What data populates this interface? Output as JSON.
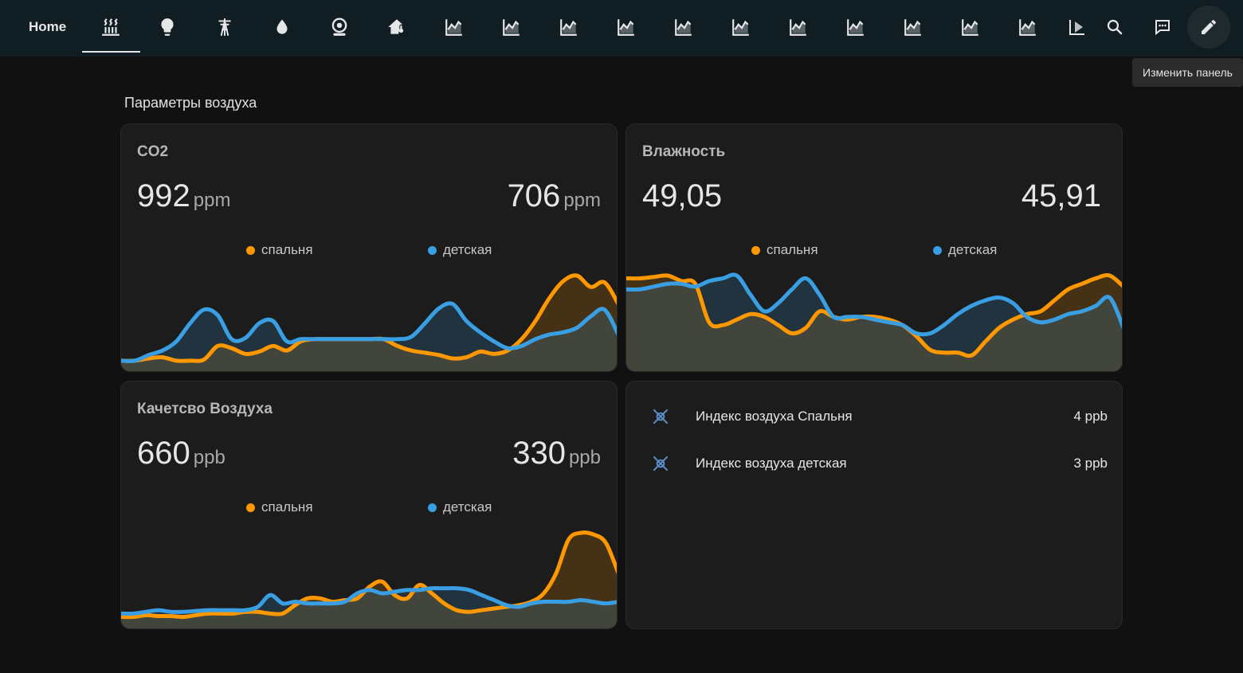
{
  "nav": {
    "home_label": "Home",
    "tabs": [
      {
        "icon": "radiator-icon",
        "active": true
      },
      {
        "icon": "lightbulb-icon"
      },
      {
        "icon": "transmission-tower-icon"
      },
      {
        "icon": "water-drop-icon"
      },
      {
        "icon": "robot-vacuum-icon"
      },
      {
        "icon": "home-thermometer-icon"
      },
      {
        "icon": "chart-areaspline-icon"
      },
      {
        "icon": "chart-areaspline-icon"
      },
      {
        "icon": "chart-areaspline-icon"
      },
      {
        "icon": "chart-areaspline-icon"
      },
      {
        "icon": "chart-areaspline-icon"
      },
      {
        "icon": "chart-areaspline-icon"
      },
      {
        "icon": "chart-areaspline-icon"
      },
      {
        "icon": "chart-areaspline-icon"
      },
      {
        "icon": "chart-areaspline-icon"
      },
      {
        "icon": "chart-areaspline-icon"
      },
      {
        "icon": "chart-areaspline-icon"
      },
      {
        "icon": "chevron-right-icon"
      }
    ],
    "actions": [
      "search-icon",
      "assist-icon",
      "pencil-icon"
    ],
    "tooltip": "Изменить панель"
  },
  "section_title": "Параметры воздуха",
  "colors": {
    "series_a": "#ff9800",
    "series_b": "#3a9ee3",
    "card_bg": "#1c1c1c",
    "topbar_bg": "#101e24"
  },
  "cards": {
    "co2": {
      "name": "CO2",
      "left_value": "992",
      "left_unit": "ppm",
      "right_value": "706",
      "right_unit": "ppm",
      "legend_a": "спальня",
      "legend_b": "детская"
    },
    "humidity": {
      "name": "Влажность",
      "left_value": "49,05",
      "left_unit": "",
      "right_value": "45,91",
      "right_unit": "",
      "legend_a": "спальня",
      "legend_b": "детская"
    },
    "air_quality": {
      "name": "Качетсво Воздуха",
      "left_value": "660",
      "left_unit": "ppb",
      "right_value": "330",
      "right_unit": "ppb",
      "legend_a": "спальня",
      "legend_b": "детская"
    },
    "entities": [
      {
        "name": "Индекс воздуха Спальня",
        "value": "4 ppb",
        "icon": "air-filter-icon"
      },
      {
        "name": "Индекс воздуха детская",
        "value": "3 ppb",
        "icon": "air-filter-icon"
      }
    ]
  },
  "chart_data": [
    {
      "type": "area",
      "title": "CO2",
      "series": [
        {
          "name": "спальня",
          "values": [
            5,
            5,
            7,
            8,
            5,
            5,
            6,
            18,
            16,
            11,
            13,
            18,
            14,
            22,
            24,
            24,
            24,
            24,
            24,
            24,
            18,
            14,
            12,
            10,
            7,
            8,
            13,
            11,
            14,
            24,
            40,
            60,
            75,
            80,
            70,
            74,
            55
          ]
        },
        {
          "name": "детская",
          "values": [
            5,
            5,
            10,
            14,
            22,
            38,
            50,
            45,
            24,
            25,
            38,
            40,
            22,
            24,
            24,
            24,
            24,
            24,
            24,
            24,
            24,
            26,
            38,
            51,
            55,
            40,
            30,
            22,
            16,
            18,
            24,
            28,
            30,
            34,
            44,
            50,
            28
          ]
        }
      ]
    },
    {
      "type": "area",
      "title": "Влажность",
      "series": [
        {
          "name": "спальня",
          "values": [
            64,
            64,
            65,
            66,
            62,
            60,
            32,
            30,
            34,
            38,
            36,
            30,
            24,
            28,
            40,
            36,
            34,
            36,
            36,
            34,
            30,
            22,
            12,
            10,
            10,
            8,
            18,
            28,
            34,
            38,
            40,
            48,
            56,
            60,
            64,
            66,
            58
          ]
        },
        {
          "name": "детская",
          "values": [
            56,
            56,
            58,
            60,
            60,
            58,
            62,
            64,
            66,
            52,
            40,
            46,
            56,
            64,
            52,
            36,
            36,
            36,
            34,
            32,
            30,
            24,
            24,
            30,
            38,
            44,
            48,
            50,
            46,
            36,
            32,
            34,
            38,
            40,
            44,
            50,
            28
          ]
        }
      ]
    },
    {
      "type": "area",
      "title": "Качетсво Воздуха",
      "series": [
        {
          "name": "спальня",
          "values": [
            8,
            8,
            10,
            9,
            9,
            8,
            10,
            12,
            12,
            12,
            14,
            14,
            12,
            12,
            22,
            30,
            30,
            26,
            28,
            30,
            44,
            50,
            34,
            30,
            46,
            36,
            24,
            16,
            14,
            16,
            18,
            20,
            22,
            26,
            36,
            60,
            100,
            108,
            106,
            96,
            60
          ]
        },
        {
          "name": "детская",
          "values": [
            12,
            12,
            14,
            16,
            14,
            14,
            15,
            16,
            16,
            16,
            16,
            20,
            34,
            24,
            26,
            24,
            24,
            24,
            26,
            36,
            40,
            36,
            38,
            40,
            40,
            42,
            42,
            42,
            40,
            34,
            28,
            22,
            20,
            24,
            26,
            26,
            26,
            28,
            26,
            24,
            26
          ]
        }
      ]
    }
  ]
}
